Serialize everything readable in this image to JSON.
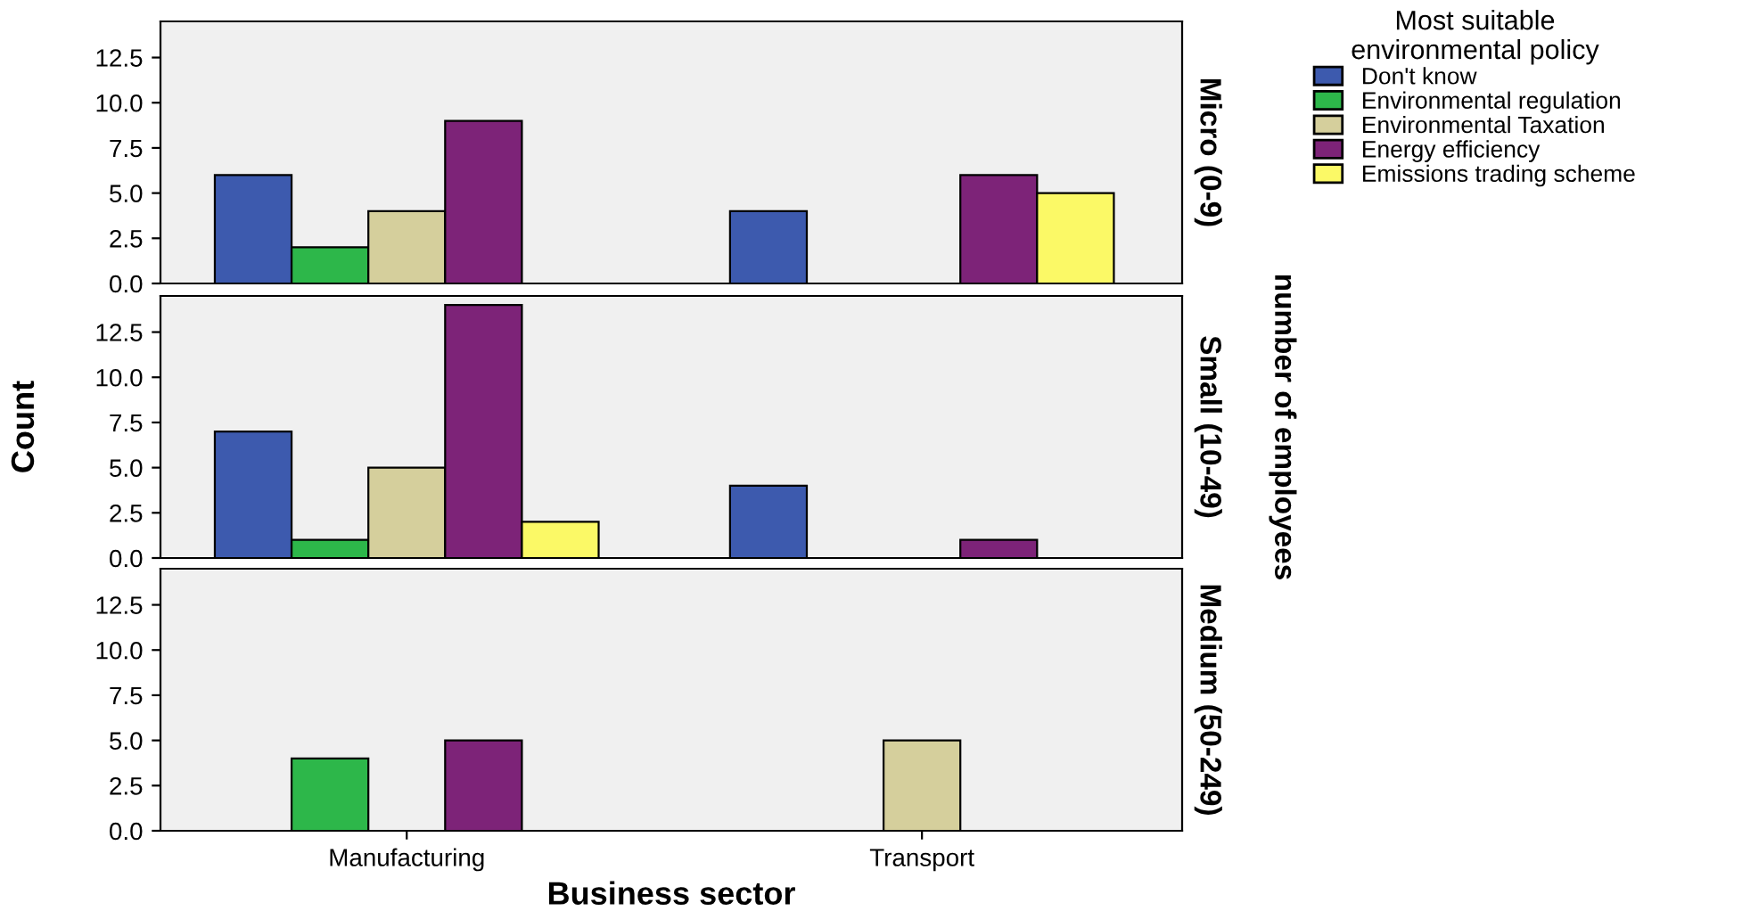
{
  "chart_data": [
    {
      "type": "bar",
      "title": "Micro (0-9)",
      "categories": [
        null,
        null
      ],
      "ylim": [
        0,
        14.5
      ],
      "yticks": [
        {
          "value": 0,
          "label": "0.0"
        },
        {
          "value": 2.5,
          "label": "2.5"
        },
        {
          "value": 5,
          "label": "5.0"
        },
        {
          "value": 7.5,
          "label": "7.5"
        },
        {
          "value": 10,
          "label": "10.0"
        },
        {
          "value": 12.5,
          "label": "12.5"
        }
      ],
      "tick_labels": "y",
      "legend": "right",
      "legend_title": "Most suitable\nenvironmental policy",
      "series": [
        {
          "name": "Don't know",
          "color": "#3d5aae",
          "values": [
            6,
            4
          ]
        },
        {
          "name": "Environmental regulation",
          "color": "#2db74a",
          "values": [
            2,
            null
          ]
        },
        {
          "name": "Environmental Taxation",
          "color": "#d5cf9c",
          "values": [
            4,
            null
          ]
        },
        {
          "name": "Energy efficiency",
          "color": "#7d2378",
          "values": [
            9,
            6
          ]
        },
        {
          "name": "Emissions trading scheme",
          "color": "#fbf966",
          "values": [
            null,
            5
          ]
        }
      ]
    },
    {
      "type": "bar",
      "title": "Small (10-49)",
      "ylabel": "Count",
      "annotations": [
        "number of employees"
      ],
      "categories": [
        null,
        null
      ],
      "ylim": [
        0,
        14.5
      ],
      "yticks": [
        {
          "value": 0,
          "label": "0.0"
        },
        {
          "value": 2.5,
          "label": "2.5"
        },
        {
          "value": 5,
          "label": "5.0"
        },
        {
          "value": 7.5,
          "label": "7.5"
        },
        {
          "value": 10,
          "label": "10.0"
        },
        {
          "value": 12.5,
          "label": "12.5"
        }
      ],
      "tick_labels": "y",
      "series": [
        {
          "color": "#3d5aae",
          "values": [
            7,
            4
          ]
        },
        {
          "color": "#2db74a",
          "values": [
            1,
            null
          ]
        },
        {
          "color": "#d5cf9c",
          "values": [
            5,
            null
          ]
        },
        {
          "color": "#7d2378",
          "values": [
            14,
            1
          ]
        },
        {
          "color": "#fbf966",
          "values": [
            2,
            null
          ]
        }
      ]
    },
    {
      "type": "bar",
      "title": "Medium (50-249)",
      "xlabel": "Business sector",
      "categories": [
        "Manufacturing",
        "Transport"
      ],
      "ylim": [
        0,
        14.5
      ],
      "yticks": [
        {
          "value": 0,
          "label": "0.0"
        },
        {
          "value": 2.5,
          "label": "2.5"
        },
        {
          "value": 5,
          "label": "5.0"
        },
        {
          "value": 7.5,
          "label": "7.5"
        },
        {
          "value": 10,
          "label": "10.0"
        },
        {
          "value": 12.5,
          "label": "12.5"
        }
      ],
      "series": [
        {
          "color": "#3d5aae",
          "values": [
            null,
            null
          ]
        },
        {
          "color": "#2db74a",
          "values": [
            4,
            null
          ]
        },
        {
          "color": "#d5cf9c",
          "values": [
            null,
            5
          ]
        },
        {
          "color": "#7d2378",
          "values": [
            5,
            null
          ]
        },
        {
          "color": "#fbf966",
          "values": [
            null,
            null
          ]
        }
      ]
    }
  ]
}
